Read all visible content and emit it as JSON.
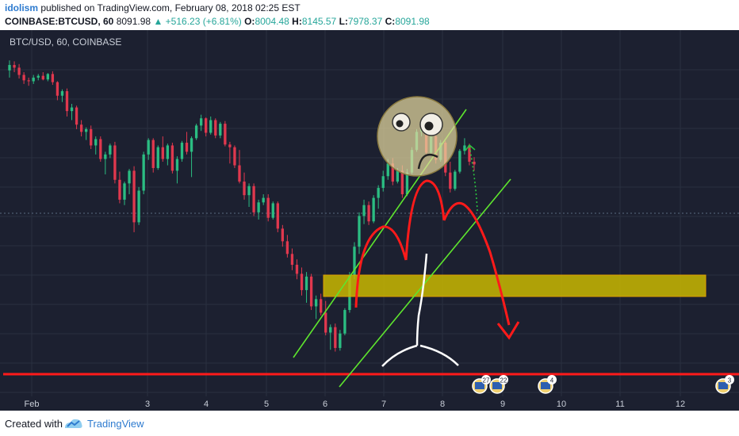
{
  "header": {
    "author": "idolism",
    "published_text": "published on TradingView.com, February 08, 2018 02:25 EST",
    "symbol": "COINBASE:BTCUSD, 60",
    "last": "8091.98",
    "change": "+516.23 (+6.81%)",
    "o_label": "O:",
    "o_value": "8004.48",
    "h_label": "H:",
    "h_value": "8145.57",
    "l_label": "L:",
    "l_value": "7978.37",
    "c_label": "C:",
    "c_value": "8091.98"
  },
  "chart_data": {
    "type": "candlestick",
    "title": "BTC/USD, 60, COINBASE",
    "x_labels": [
      "Feb",
      "3",
      "4",
      "5",
      "6",
      "7",
      "8",
      "9",
      "10",
      "11",
      "12"
    ],
    "candles": [
      [
        9130,
        9240,
        9050,
        9190
      ],
      [
        9190,
        9230,
        9110,
        9160
      ],
      [
        9160,
        9200,
        9040,
        9080
      ],
      [
        9080,
        9110,
        8980,
        9020
      ],
      [
        9020,
        9050,
        8960,
        9010
      ],
      [
        9010,
        9080,
        8980,
        9050
      ],
      [
        9050,
        9090,
        9020,
        9070
      ],
      [
        9070,
        9110,
        9020,
        9030
      ],
      [
        9030,
        9100,
        9010,
        9090
      ],
      [
        9090,
        9120,
        8970,
        9000
      ],
      [
        9000,
        9010,
        8800,
        8850
      ],
      [
        8850,
        8920,
        8780,
        8900
      ],
      [
        8900,
        8930,
        8620,
        8680
      ],
      [
        8680,
        8760,
        8580,
        8720
      ],
      [
        8720,
        8740,
        8480,
        8530
      ],
      [
        8530,
        8580,
        8400,
        8450
      ],
      [
        8450,
        8500,
        8360,
        8480
      ],
      [
        8480,
        8520,
        8260,
        8300
      ],
      [
        8300,
        8400,
        8200,
        8370
      ],
      [
        8370,
        8400,
        8120,
        8150
      ],
      [
        8150,
        8230,
        7980,
        8200
      ],
      [
        8200,
        8320,
        8160,
        8300
      ],
      [
        8300,
        8340,
        7880,
        7920
      ],
      [
        7920,
        8010,
        7660,
        7700
      ],
      [
        7700,
        7900,
        7640,
        7880
      ],
      [
        7880,
        8040,
        7760,
        8020
      ],
      [
        8020,
        8070,
        7340,
        7450
      ],
      [
        7450,
        7840,
        7420,
        7800
      ],
      [
        7800,
        8230,
        7760,
        8200
      ],
      [
        8200,
        8380,
        8140,
        8360
      ],
      [
        8360,
        8380,
        8000,
        8050
      ],
      [
        8050,
        8300,
        8030,
        8280
      ],
      [
        8280,
        8400,
        8120,
        8150
      ],
      [
        8150,
        8320,
        8080,
        8300
      ],
      [
        8300,
        8330,
        7990,
        8020
      ],
      [
        8020,
        8180,
        7880,
        8150
      ],
      [
        8150,
        8350,
        8120,
        8330
      ],
      [
        8330,
        8450,
        8200,
        8230
      ],
      [
        8230,
        8400,
        7950,
        8380
      ],
      [
        8380,
        8540,
        8360,
        8520
      ],
      [
        8520,
        8640,
        8460,
        8600
      ],
      [
        8600,
        8610,
        8400,
        8440
      ],
      [
        8440,
        8620,
        8420,
        8580
      ],
      [
        8580,
        8600,
        8380,
        8410
      ],
      [
        8410,
        8560,
        8380,
        8540
      ],
      [
        8540,
        8570,
        8290,
        8310
      ],
      [
        8310,
        8340,
        8100,
        8280
      ],
      [
        8280,
        8300,
        8050,
        8080
      ],
      [
        8080,
        8250,
        7880,
        7900
      ],
      [
        7900,
        8000,
        7700,
        7750
      ],
      [
        7750,
        7880,
        7620,
        7850
      ],
      [
        7850,
        7880,
        7520,
        7560
      ],
      [
        7560,
        7700,
        7480,
        7670
      ],
      [
        7670,
        7760,
        7640,
        7720
      ],
      [
        7720,
        7760,
        7460,
        7500
      ],
      [
        7500,
        7680,
        7480,
        7660
      ],
      [
        7660,
        7680,
        7340,
        7380
      ],
      [
        7380,
        7420,
        7180,
        7240
      ],
      [
        7240,
        7310,
        7060,
        7100
      ],
      [
        7100,
        7160,
        6920,
        6980
      ],
      [
        6980,
        7040,
        6820,
        6880
      ],
      [
        6880,
        6950,
        6640,
        6700
      ],
      [
        6700,
        6900,
        6560,
        6850
      ],
      [
        6850,
        6880,
        6480,
        6520
      ],
      [
        6520,
        6640,
        6380,
        6600
      ],
      [
        6600,
        6660,
        6420,
        6450
      ],
      [
        6450,
        6580,
        6200,
        6230
      ],
      [
        6230,
        6320,
        6040,
        6290
      ],
      [
        6290,
        6330,
        6020,
        6060
      ],
      [
        6060,
        6260,
        6030,
        6220
      ],
      [
        6220,
        6500,
        6200,
        6480
      ],
      [
        6480,
        6900,
        6450,
        6860
      ],
      [
        6860,
        7230,
        6820,
        7180
      ],
      [
        7180,
        7560,
        7100,
        7520
      ],
      [
        7520,
        7700,
        7430,
        7640
      ],
      [
        7640,
        7680,
        7420,
        7460
      ],
      [
        7460,
        7750,
        7440,
        7720
      ],
      [
        7720,
        7860,
        7600,
        7830
      ],
      [
        7830,
        8020,
        7790,
        7960
      ],
      [
        7960,
        8150,
        7920,
        8100
      ],
      [
        8100,
        8160,
        7860,
        7900
      ],
      [
        7900,
        8050,
        7880,
        8020
      ],
      [
        8020,
        8080,
        7720,
        7760
      ],
      [
        7760,
        8040,
        7740,
        8000
      ],
      [
        8000,
        8280,
        7980,
        8250
      ],
      [
        8250,
        8480,
        8230,
        8450
      ],
      [
        8450,
        8580,
        8400,
        8520
      ],
      [
        8520,
        8560,
        8180,
        8220
      ],
      [
        8220,
        8420,
        8200,
        8400
      ],
      [
        8400,
        8450,
        8100,
        8140
      ],
      [
        8140,
        8360,
        8120,
        8330
      ],
      [
        8330,
        8350,
        7960,
        8000
      ],
      [
        8000,
        8120,
        7780,
        7820
      ],
      [
        7820,
        8030,
        7800,
        8010
      ],
      [
        8010,
        8260,
        7990,
        8240
      ],
      [
        8240,
        8380,
        8200,
        8300
      ],
      [
        8300,
        8320,
        8080,
        8120
      ],
      [
        8120,
        8170,
        8020,
        8090
      ]
    ],
    "grid": true,
    "annotations": [
      {
        "kind": "ascending-channel",
        "color": "#5ee62e"
      },
      {
        "kind": "horizontal-zone",
        "color": "#d4c800"
      },
      {
        "kind": "support-line",
        "color": "#ff1a1a"
      },
      {
        "kind": "triple-top-arcs",
        "color": "#ff1a1a"
      },
      {
        "kind": "projected-drop-arrow",
        "color": "#ff1a1a"
      },
      {
        "kind": "dotted-up-arrow",
        "color": "#2bc23f"
      },
      {
        "kind": "cartoon-face",
        "color": "#8a7a40"
      },
      {
        "kind": "stick-figure",
        "color": "#ffffff"
      }
    ],
    "event_badges": [
      "27",
      "22",
      "4",
      "3"
    ]
  },
  "footer": {
    "created_with": "Created with",
    "brand": "TradingView"
  },
  "colors": {
    "bg": "#1c2030",
    "up": "#2bbd82",
    "down": "#e0384e",
    "grid": "#2a3040",
    "text": "#c9ced8"
  }
}
